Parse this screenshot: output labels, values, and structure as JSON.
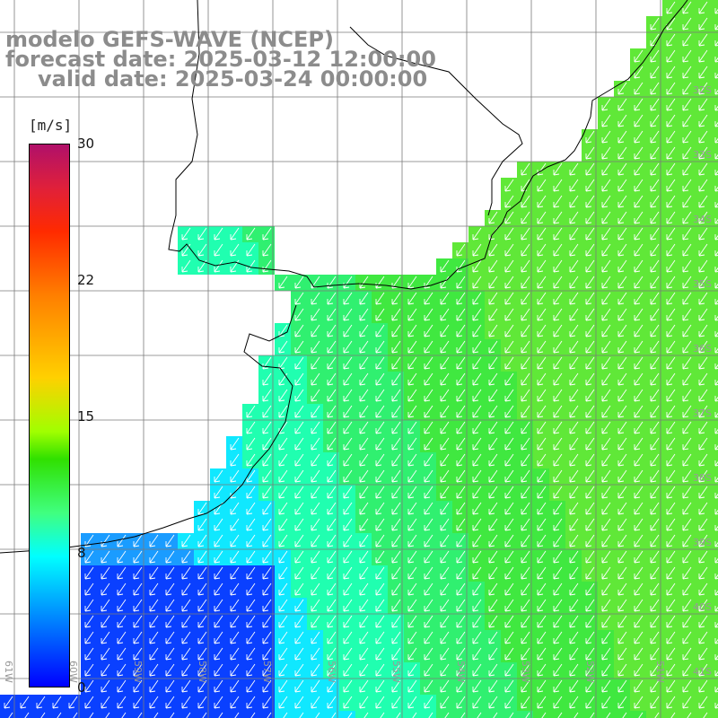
{
  "title": {
    "line1": "modelo GEFS-WAVE (NCEP)",
    "line2": "forecast date: 2025-03-12 12:00:00",
    "line3": "valid date: 2025-03-24 00:00:00"
  },
  "colorbar": {
    "unit": "[m/s]",
    "ticks": [
      "30",
      "22",
      "15",
      "8",
      "0"
    ],
    "tick_values": [
      30,
      22,
      15,
      8,
      0
    ],
    "colors": {
      "max": "#b0106a",
      "red": "#ff2a00",
      "orange": "#ff8000",
      "yellow": "#ffd000",
      "green": "#30e000",
      "lightgreen": "#40ff80",
      "cyan": "#00ffff",
      "lightblue": "#0080ff",
      "blue": "#0000ff"
    }
  },
  "map": {
    "land_color": "#ffffff",
    "grid_color": "#777777",
    "coastline_color": "#000000",
    "arrow_color": "#ffffff",
    "lon_labels": [
      "61W",
      "60W",
      "59W",
      "58W",
      "57W",
      "56W",
      "55W",
      "54W",
      "53W",
      "52W",
      "51W"
    ],
    "lat_labels": [
      "32S",
      "33S",
      "34S",
      "35S",
      "36S",
      "37S",
      "38S",
      "39S",
      "40S",
      "41S"
    ],
    "wind_direction": "from north-east",
    "grid": true
  }
}
